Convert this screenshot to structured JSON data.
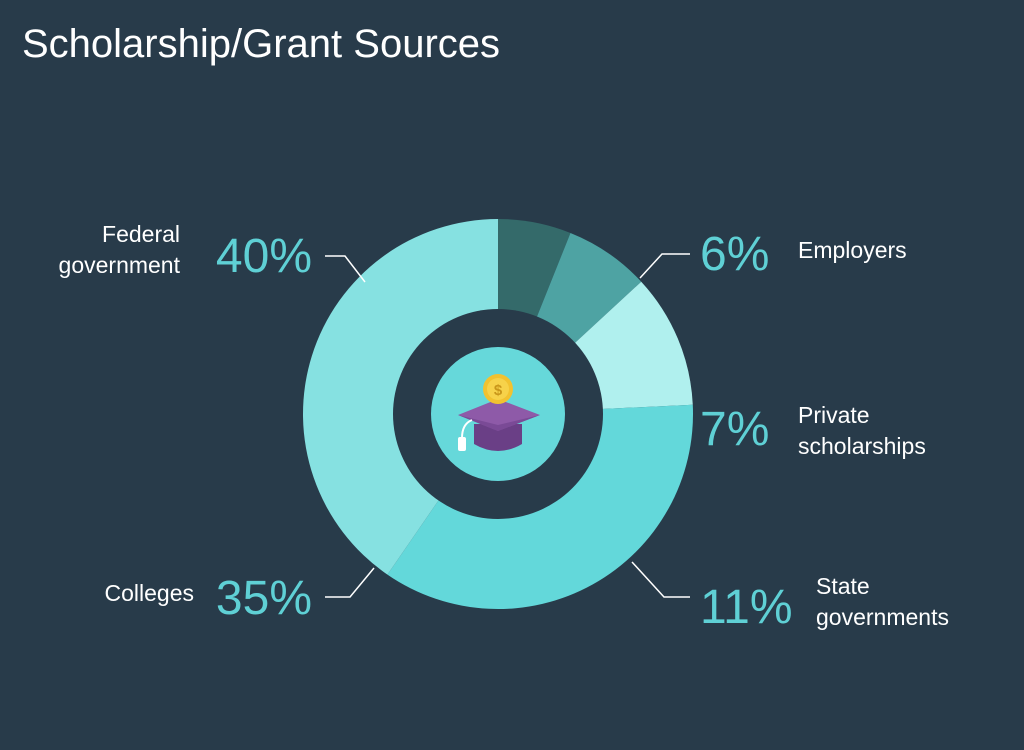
{
  "title": "Scholarship/Grant Sources",
  "chart_data": {
    "type": "pie",
    "title": "Scholarship/Grant Sources",
    "slices": [
      {
        "label": "Employers",
        "value": 6,
        "display": "6%",
        "color": "#346a6a"
      },
      {
        "label": "Private scholarships",
        "value": 7,
        "display": "7%",
        "color": "#4ea3a3"
      },
      {
        "label": "State governments",
        "value": 11,
        "display": "11%",
        "color": "#b0f0ee"
      },
      {
        "label": "Colleges",
        "value": 35,
        "display": "35%",
        "color": "#63d8da"
      },
      {
        "label": "Federal government",
        "value": 40,
        "display": "40%",
        "color": "#86e1e1"
      }
    ],
    "label_lines": {
      "Employers": [
        "Employers"
      ],
      "Private scholarships": [
        "Private",
        "scholarships"
      ],
      "State governments": [
        "State",
        "governments"
      ],
      "Colleges": [
        "Colleges"
      ],
      "Federal government": [
        "Federal",
        "government"
      ]
    },
    "percent_color": "#5fd0d5",
    "label_color": "#ffffff",
    "center_icon": "graduation-cap-coin-icon"
  }
}
